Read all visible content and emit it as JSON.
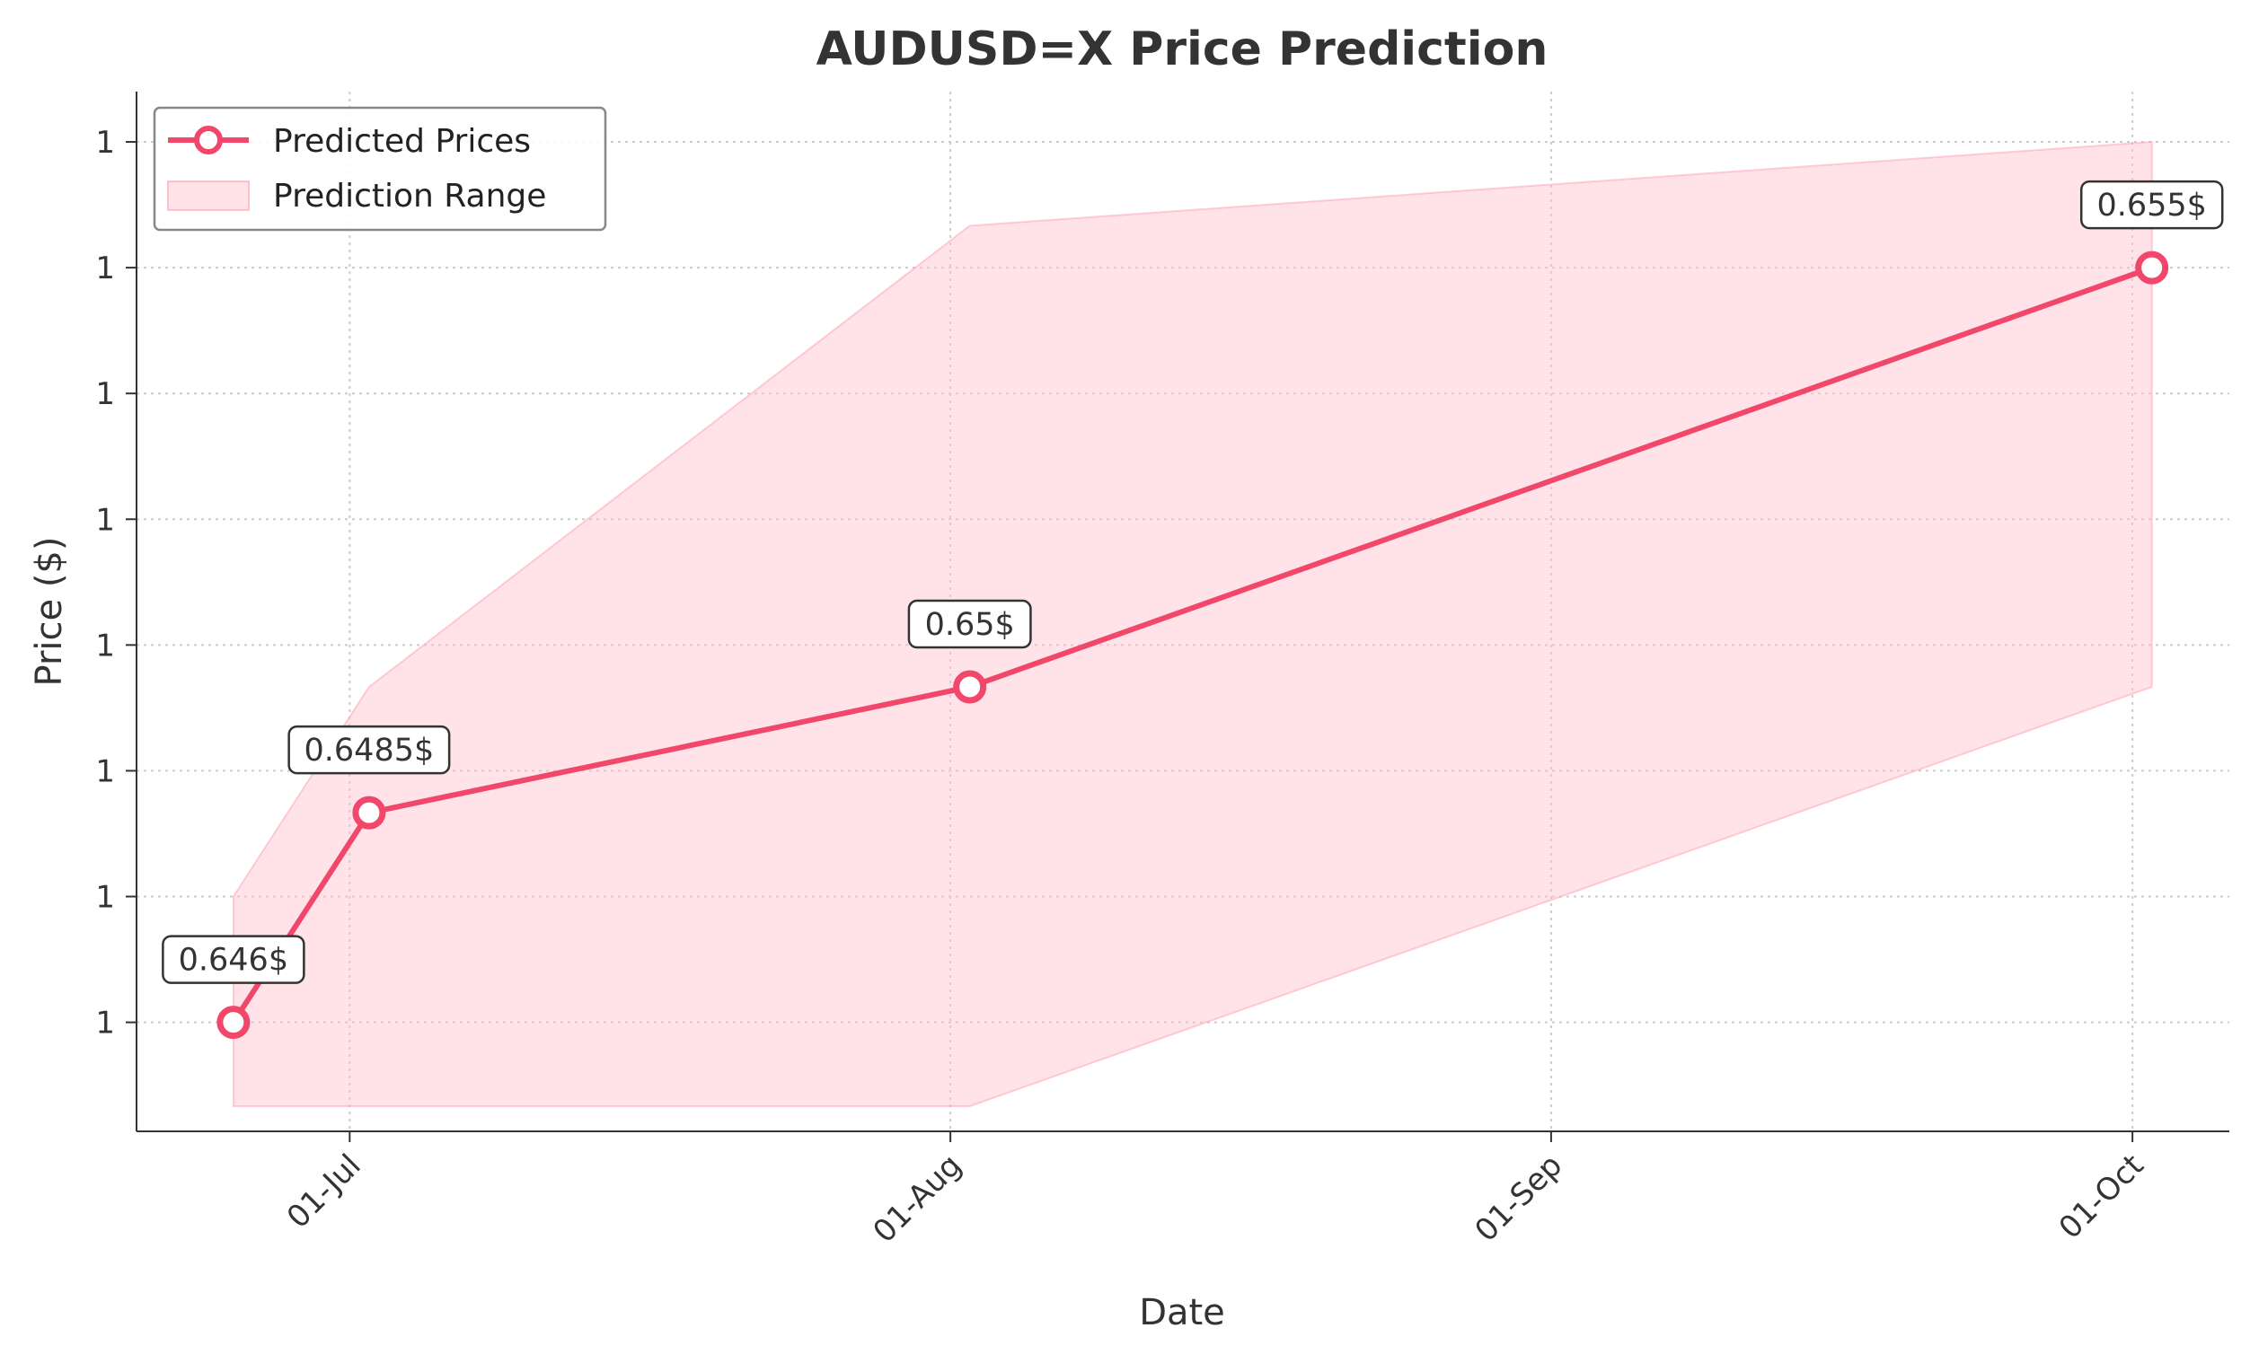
{
  "chart_data": {
    "type": "line",
    "title": "AUDUSD=X Price Prediction",
    "xlabel": "Date",
    "ylabel": "Price ($)",
    "x_ticks": [
      {
        "date": "2024-07-01",
        "label": "01-Jul"
      },
      {
        "date": "2024-08-01",
        "label": "01-Aug"
      },
      {
        "date": "2024-09-01",
        "label": "01-Sep"
      },
      {
        "date": "2024-10-01",
        "label": "01-Oct"
      }
    ],
    "y_ticks": [
      {
        "value": 0.646,
        "label": "1"
      },
      {
        "value": 0.6475,
        "label": "1"
      },
      {
        "value": 0.649,
        "label": "1"
      },
      {
        "value": 0.6505,
        "label": "1"
      },
      {
        "value": 0.652,
        "label": "1"
      },
      {
        "value": 0.6535,
        "label": "1"
      },
      {
        "value": 0.655,
        "label": "1"
      },
      {
        "value": 0.6565,
        "label": "1"
      }
    ],
    "xlim": [
      "2024-06-20",
      "2024-10-06"
    ],
    "ylim": [
      0.6447,
      0.6571
    ],
    "grid": true,
    "legend": {
      "placement": "top-left",
      "entries": [
        {
          "label": "Predicted Prices",
          "kind": "line"
        },
        {
          "label": "Prediction Range",
          "kind": "area"
        }
      ]
    },
    "series": [
      {
        "name": "Predicted Prices",
        "x": [
          "2024-06-25",
          "2024-07-02",
          "2024-08-02",
          "2024-10-02"
        ],
        "y": [
          0.646,
          0.6485,
          0.65,
          0.655
        ],
        "labels": [
          "0.646$",
          "0.6485$",
          "0.65$",
          "0.655$"
        ],
        "color": "#f0476a"
      }
    ],
    "range": {
      "name": "Prediction Range",
      "x": [
        "2024-06-25",
        "2024-07-02",
        "2024-08-02",
        "2024-10-02"
      ],
      "lower": [
        0.645,
        0.645,
        0.645,
        0.65
      ],
      "upper": [
        0.6475,
        0.65,
        0.6555,
        0.6565
      ],
      "color": "#ffc0cb"
    }
  }
}
